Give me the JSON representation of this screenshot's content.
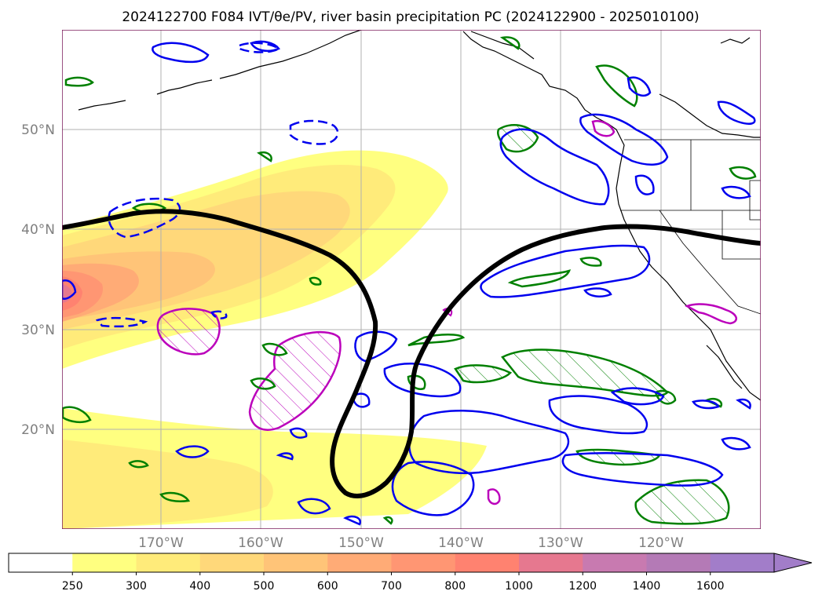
{
  "title": "2024122700 F084 IVT/θe/PV, river basin precipitation PC (2024122900 - 2025010100)",
  "map": {
    "lon_range": [
      -180,
      -110
    ],
    "lat_range": [
      10,
      60
    ],
    "lon_ticks": [
      {
        "value": -170,
        "label": "170°W"
      },
      {
        "value": -160,
        "label": "160°W"
      },
      {
        "value": -150,
        "label": "150°W"
      },
      {
        "value": -140,
        "label": "140°W"
      },
      {
        "value": -130,
        "label": "130°W"
      },
      {
        "value": -120,
        "label": "120°W"
      }
    ],
    "lat_ticks": [
      {
        "value": 20,
        "label": "20°N"
      },
      {
        "value": 30,
        "label": "30°N"
      },
      {
        "value": 40,
        "label": "40°N"
      },
      {
        "value": 50,
        "label": "50°N"
      }
    ],
    "grid": true,
    "border_color": "#7a1a5a"
  },
  "colorbar": {
    "levels": [
      "250",
      "300",
      "400",
      "500",
      "600",
      "700",
      "800",
      "1000",
      "1200",
      "1400",
      "1600"
    ],
    "colors": [
      "#ffffff",
      "#ffff80",
      "#ffeb7a",
      "#ffd87a",
      "#ffc478",
      "#ffab76",
      "#ff9673",
      "#ff8270",
      "#e6788f",
      "#c87ab0",
      "#b47ab6",
      "#a27dc9"
    ],
    "extend": "max"
  },
  "colors": {
    "theta_e_contour": "#000000",
    "pv_positive": "#0000ee",
    "precip_green": "#008000",
    "precip_magenta": "#bb00bb",
    "coastline": "#000000"
  }
}
